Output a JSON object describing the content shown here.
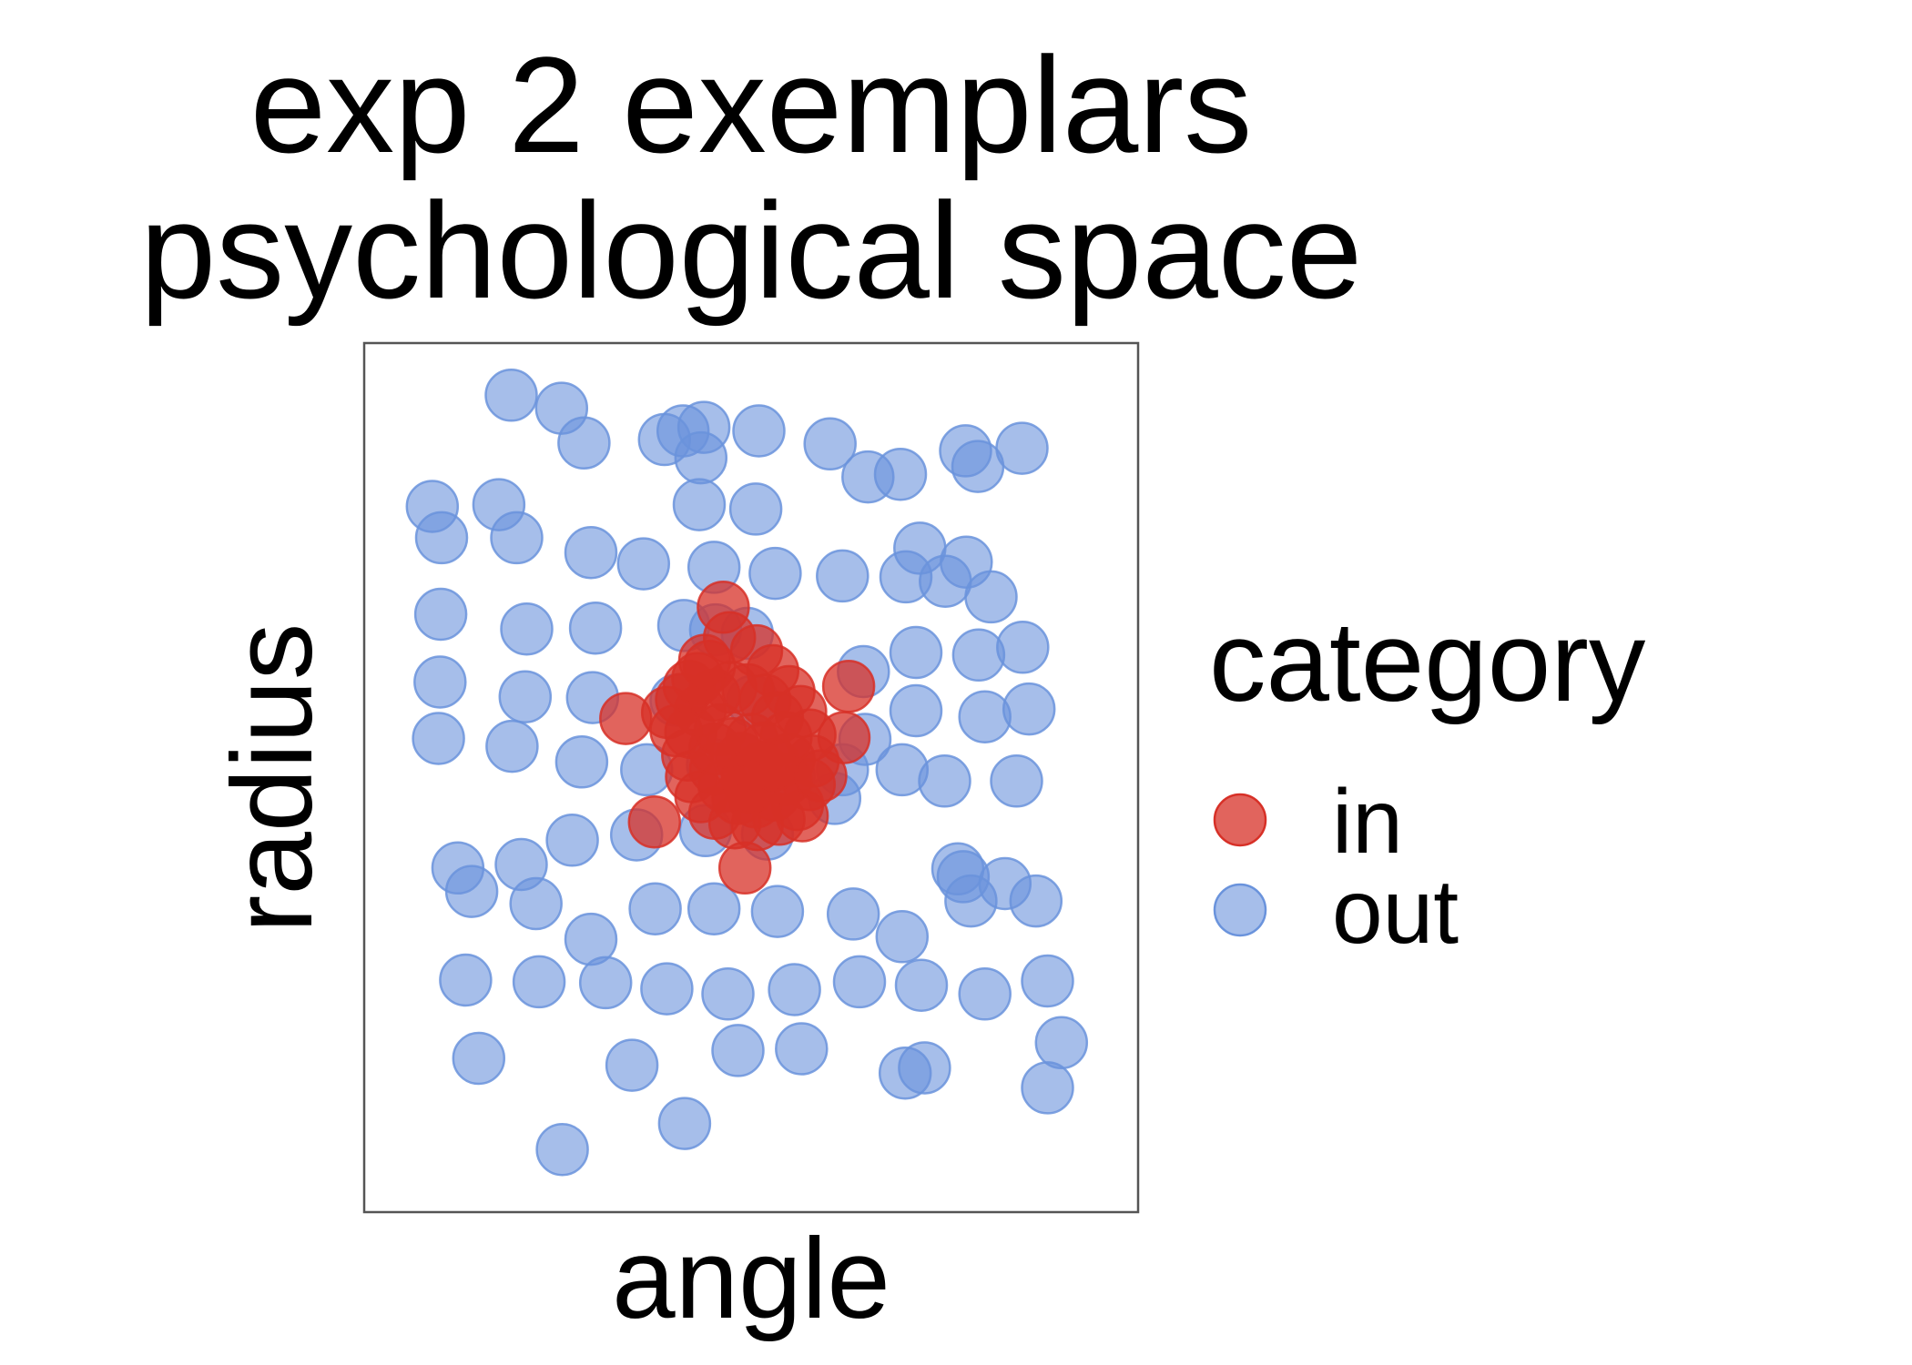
{
  "chart_data": {
    "type": "scatter",
    "title": [
      "exp 2 exemplars",
      "psychological space"
    ],
    "xlabel": "angle",
    "ylabel": "radius",
    "xlim": [
      0,
      100
    ],
    "ylim": [
      0,
      100
    ],
    "grid": false,
    "axis_ticks": false,
    "legend": {
      "title": "category",
      "position": "right",
      "entries": [
        {
          "label": "in",
          "color": "#d73027"
        },
        {
          "label": "out",
          "color": "#6a93dc"
        }
      ]
    },
    "series": [
      {
        "name": "in",
        "color": "#d73027",
        "points": [
          [
            46.4,
            69.6
          ],
          [
            33.8,
            56.8
          ],
          [
            37.5,
            44.9
          ],
          [
            49.2,
            39.6
          ],
          [
            56.6,
            45.6
          ],
          [
            62.6,
            60.5
          ],
          [
            62.0,
            54.6
          ],
          [
            47.2,
            66.1
          ],
          [
            50.7,
            64.6
          ],
          [
            52.8,
            62.3
          ],
          [
            54.9,
            59.9
          ],
          [
            56.4,
            57.6
          ],
          [
            57.6,
            54.9
          ],
          [
            58.0,
            51.9
          ],
          [
            57.5,
            49.2
          ],
          [
            56.0,
            46.9
          ],
          [
            53.6,
            45.2
          ],
          [
            50.8,
            44.6
          ],
          [
            47.9,
            44.8
          ],
          [
            45.3,
            45.9
          ],
          [
            43.5,
            47.8
          ],
          [
            42.3,
            50.1
          ],
          [
            41.8,
            52.6
          ],
          [
            42.2,
            55.2
          ],
          [
            43.4,
            57.7
          ],
          [
            45.2,
            59.5
          ],
          [
            47.4,
            60.4
          ],
          [
            49.6,
            60.1
          ],
          [
            51.8,
            58.9
          ],
          [
            53.4,
            56.9
          ],
          [
            54.5,
            54.6
          ],
          [
            54.9,
            52.1
          ],
          [
            54.5,
            49.8
          ],
          [
            52.9,
            48.0
          ],
          [
            50.6,
            47.2
          ],
          [
            48.3,
            47.6
          ],
          [
            46.5,
            49.0
          ],
          [
            45.4,
            51.0
          ],
          [
            45.3,
            53.3
          ],
          [
            46.0,
            55.5
          ],
          [
            41.0,
            59.0
          ],
          [
            40.3,
            55.4
          ],
          [
            39.2,
            57.5
          ],
          [
            44.6,
            62.8
          ],
          [
            42.0,
            60.5
          ],
          [
            48.7,
            52.2
          ],
          [
            50.1,
            54.4
          ],
          [
            51.7,
            53.4
          ],
          [
            49.5,
            50.0
          ],
          [
            51.3,
            51.1
          ],
          [
            47.6,
            53.9
          ],
          [
            49.9,
            48.9
          ],
          [
            53.0,
            51.5
          ],
          [
            44.0,
            63.5
          ],
          [
            43.1,
            61.4
          ],
          [
            59.0,
            50.2
          ]
        ]
      },
      {
        "name": "out",
        "color": "#6a93dc",
        "points": [
          [
            19.0,
            94.0
          ],
          [
            25.5,
            92.5
          ],
          [
            28.4,
            88.5
          ],
          [
            38.8,
            88.9
          ],
          [
            41.2,
            89.9
          ],
          [
            43.9,
            90.3
          ],
          [
            43.5,
            86.8
          ],
          [
            51.0,
            89.9
          ],
          [
            60.2,
            88.4
          ],
          [
            65.1,
            84.6
          ],
          [
            69.3,
            84.9
          ],
          [
            77.7,
            87.6
          ],
          [
            79.3,
            85.8
          ],
          [
            85.0,
            87.9
          ],
          [
            8.8,
            81.2
          ],
          [
            17.4,
            81.4
          ],
          [
            10.0,
            77.6
          ],
          [
            19.7,
            77.6
          ],
          [
            29.3,
            75.9
          ],
          [
            43.3,
            81.4
          ],
          [
            50.6,
            80.9
          ],
          [
            36.1,
            74.6
          ],
          [
            45.2,
            74.2
          ],
          [
            53.1,
            73.5
          ],
          [
            61.8,
            73.2
          ],
          [
            70.0,
            73.1
          ],
          [
            71.8,
            76.4
          ],
          [
            77.8,
            74.8
          ],
          [
            75.1,
            72.6
          ],
          [
            81.0,
            70.8
          ],
          [
            9.9,
            68.8
          ],
          [
            21.0,
            67.1
          ],
          [
            29.9,
            67.2
          ],
          [
            41.3,
            67.5
          ],
          [
            45.4,
            67.0
          ],
          [
            49.5,
            66.6
          ],
          [
            64.5,
            62.2
          ],
          [
            71.3,
            64.4
          ],
          [
            79.4,
            64.1
          ],
          [
            85.1,
            65.0
          ],
          [
            9.8,
            61.0
          ],
          [
            20.8,
            59.3
          ],
          [
            29.5,
            59.2
          ],
          [
            40.3,
            58.9
          ],
          [
            50.2,
            58.8
          ],
          [
            64.7,
            54.4
          ],
          [
            71.3,
            57.7
          ],
          [
            80.2,
            57.0
          ],
          [
            85.9,
            57.9
          ],
          [
            9.6,
            54.5
          ],
          [
            19.1,
            53.6
          ],
          [
            28.1,
            51.8
          ],
          [
            36.5,
            50.9
          ],
          [
            45.0,
            51.5
          ],
          [
            54.9,
            50.2
          ],
          [
            61.8,
            50.9
          ],
          [
            69.5,
            50.9
          ],
          [
            75.0,
            49.6
          ],
          [
            84.3,
            49.6
          ],
          [
            60.8,
            47.6
          ],
          [
            12.1,
            39.6
          ],
          [
            20.3,
            40.0
          ],
          [
            26.9,
            42.8
          ],
          [
            35.2,
            43.4
          ],
          [
            44.1,
            43.9
          ],
          [
            52.1,
            43.5
          ],
          [
            13.9,
            36.9
          ],
          [
            22.2,
            35.5
          ],
          [
            29.3,
            31.4
          ],
          [
            37.6,
            34.9
          ],
          [
            45.2,
            34.9
          ],
          [
            53.4,
            34.6
          ],
          [
            63.2,
            34.3
          ],
          [
            69.5,
            31.7
          ],
          [
            76.7,
            39.5
          ],
          [
            77.4,
            38.6
          ],
          [
            78.4,
            35.8
          ],
          [
            82.8,
            37.8
          ],
          [
            86.8,
            35.8
          ],
          [
            13.1,
            26.7
          ],
          [
            22.6,
            26.5
          ],
          [
            31.2,
            26.4
          ],
          [
            39.1,
            25.7
          ],
          [
            47.0,
            25.1
          ],
          [
            55.6,
            25.6
          ],
          [
            64.0,
            26.5
          ],
          [
            72.0,
            26.1
          ],
          [
            80.2,
            25.1
          ],
          [
            88.3,
            26.6
          ],
          [
            14.8,
            17.7
          ],
          [
            34.6,
            16.9
          ],
          [
            48.3,
            18.6
          ],
          [
            56.5,
            18.8
          ],
          [
            69.9,
            16.0
          ],
          [
            72.4,
            16.6
          ],
          [
            90.1,
            19.5
          ],
          [
            88.3,
            14.3
          ],
          [
            41.4,
            10.2
          ],
          [
            25.6,
            7.2
          ]
        ]
      }
    ]
  }
}
